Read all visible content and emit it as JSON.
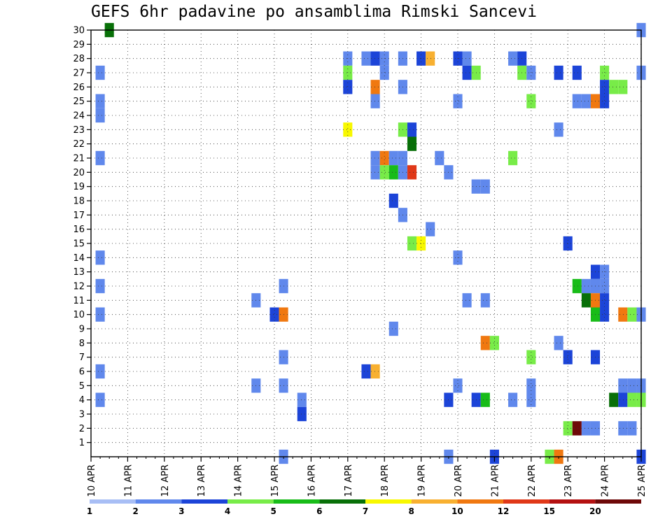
{
  "chart_data": {
    "type": "heatmap",
    "title": "GEFS 6hr padavine po ansamblima Rimski Sancevi",
    "xlabel": "",
    "ylabel": "",
    "x_tick_labels": [
      "10 APR",
      "11 APR",
      "12 APR",
      "13 APR",
      "14 APR",
      "15 APR",
      "16 APR",
      "17 APR",
      "18 APR",
      "19 APR",
      "20 APR",
      "21 APR",
      "22 APR",
      "23 APR",
      "24 APR",
      "25 APR"
    ],
    "x_range_days": [
      0,
      15
    ],
    "y_tick_labels": [
      "1",
      "2",
      "3",
      "4",
      "5",
      "6",
      "7",
      "8",
      "9",
      "10",
      "11",
      "12",
      "13",
      "14",
      "15",
      "16",
      "17",
      "18",
      "19",
      "20",
      "21",
      "22",
      "23",
      "24",
      "25",
      "26",
      "27",
      "28",
      "29",
      "30"
    ],
    "y_range": [
      0,
      30
    ],
    "grid": true,
    "colorbar": {
      "labels": [
        "1",
        "2",
        "3",
        "4",
        "5",
        "6",
        "7",
        "8",
        "10",
        "12",
        "15",
        "20"
      ],
      "colors": [
        "#a8bef5",
        "#6088ec",
        "#1c44d8",
        "#78ec48",
        "#18bc18",
        "#087008",
        "#f8f800",
        "#f8b030",
        "#f07810",
        "#e03818",
        "#b41010",
        "#6e0808"
      ]
    },
    "cells": [
      [
        0.5,
        30,
        5
      ],
      [
        15.0,
        30,
        1
      ],
      [
        7.0,
        28,
        1
      ],
      [
        7.5,
        28,
        1
      ],
      [
        7.75,
        28,
        2
      ],
      [
        8.0,
        28,
        1
      ],
      [
        8.5,
        28,
        1
      ],
      [
        9.0,
        28,
        2
      ],
      [
        9.25,
        28,
        7
      ],
      [
        10.0,
        28,
        2
      ],
      [
        10.25,
        28,
        1
      ],
      [
        11.5,
        28,
        1
      ],
      [
        11.75,
        28,
        2
      ],
      [
        0.25,
        27,
        1
      ],
      [
        7.0,
        27,
        3
      ],
      [
        8.0,
        27,
        1
      ],
      [
        10.25,
        27,
        2
      ],
      [
        10.5,
        27,
        3
      ],
      [
        11.75,
        27,
        3
      ],
      [
        12.0,
        27,
        1
      ],
      [
        12.75,
        27,
        2
      ],
      [
        13.25,
        27,
        2
      ],
      [
        14.0,
        27,
        3
      ],
      [
        15.0,
        27,
        1
      ],
      [
        7.0,
        26,
        2
      ],
      [
        7.75,
        26,
        8
      ],
      [
        8.5,
        26,
        1
      ],
      [
        14.0,
        26,
        2
      ],
      [
        14.25,
        26,
        3
      ],
      [
        14.5,
        26,
        3
      ],
      [
        0.25,
        25,
        1
      ],
      [
        7.75,
        25,
        1
      ],
      [
        10.0,
        25,
        1
      ],
      [
        12.0,
        25,
        3
      ],
      [
        13.25,
        25,
        1
      ],
      [
        13.5,
        25,
        1
      ],
      [
        13.75,
        25,
        8
      ],
      [
        14.0,
        25,
        2
      ],
      [
        0.25,
        24,
        1
      ],
      [
        7.0,
        23,
        6
      ],
      [
        8.5,
        23,
        3
      ],
      [
        8.75,
        23,
        2
      ],
      [
        12.75,
        23,
        1
      ],
      [
        8.75,
        22,
        5
      ],
      [
        0.25,
        21,
        1
      ],
      [
        7.75,
        21,
        1
      ],
      [
        8.0,
        21,
        8
      ],
      [
        8.25,
        21,
        1
      ],
      [
        8.5,
        21,
        1
      ],
      [
        9.5,
        21,
        1
      ],
      [
        11.5,
        21,
        3
      ],
      [
        7.75,
        20,
        1
      ],
      [
        8.0,
        20,
        3
      ],
      [
        8.25,
        20,
        4
      ],
      [
        8.5,
        20,
        1
      ],
      [
        8.75,
        20,
        9
      ],
      [
        9.75,
        20,
        1
      ],
      [
        10.5,
        19,
        1
      ],
      [
        10.75,
        19,
        1
      ],
      [
        8.25,
        18,
        2
      ],
      [
        8.5,
        17,
        1
      ],
      [
        9.25,
        16,
        1
      ],
      [
        8.75,
        15,
        3
      ],
      [
        9.0,
        15,
        6
      ],
      [
        13.0,
        15,
        2
      ],
      [
        0.25,
        14,
        1
      ],
      [
        10.0,
        14,
        1
      ],
      [
        13.75,
        13,
        2
      ],
      [
        14.0,
        13,
        1
      ],
      [
        0.25,
        12,
        1
      ],
      [
        5.25,
        12,
        1
      ],
      [
        13.25,
        12,
        4
      ],
      [
        13.5,
        12,
        1
      ],
      [
        13.75,
        12,
        1
      ],
      [
        14.0,
        12,
        1
      ],
      [
        4.5,
        11,
        1
      ],
      [
        10.25,
        11,
        1
      ],
      [
        10.75,
        11,
        1
      ],
      [
        13.5,
        11,
        5
      ],
      [
        13.75,
        11,
        8
      ],
      [
        14.0,
        11,
        2
      ],
      [
        0.25,
        10,
        1
      ],
      [
        5.0,
        10,
        2
      ],
      [
        5.25,
        10,
        8
      ],
      [
        13.75,
        10,
        4
      ],
      [
        14.0,
        10,
        2
      ],
      [
        14.5,
        10,
        8
      ],
      [
        14.75,
        10,
        3
      ],
      [
        15.0,
        10,
        1
      ],
      [
        8.25,
        9,
        1
      ],
      [
        10.75,
        8,
        8
      ],
      [
        11.0,
        8,
        3
      ],
      [
        12.75,
        8,
        1
      ],
      [
        5.25,
        7,
        1
      ],
      [
        12.0,
        7,
        3
      ],
      [
        13.0,
        7,
        2
      ],
      [
        13.75,
        7,
        2
      ],
      [
        0.25,
        6,
        1
      ],
      [
        7.5,
        6,
        2
      ],
      [
        7.75,
        6,
        7
      ],
      [
        4.5,
        5,
        1
      ],
      [
        5.25,
        5,
        1
      ],
      [
        10.0,
        5,
        1
      ],
      [
        12.0,
        5,
        1
      ],
      [
        14.5,
        5,
        1
      ],
      [
        14.75,
        5,
        1
      ],
      [
        15.0,
        5,
        1
      ],
      [
        0.25,
        4,
        1
      ],
      [
        5.75,
        4,
        1
      ],
      [
        9.75,
        4,
        2
      ],
      [
        10.5,
        4,
        2
      ],
      [
        10.75,
        4,
        4
      ],
      [
        11.5,
        4,
        1
      ],
      [
        12.0,
        4,
        1
      ],
      [
        14.25,
        4,
        5
      ],
      [
        14.5,
        4,
        2
      ],
      [
        14.75,
        4,
        3
      ],
      [
        15.0,
        4,
        3
      ],
      [
        5.75,
        3,
        2
      ],
      [
        13.0,
        2,
        3
      ],
      [
        13.25,
        2,
        11
      ],
      [
        13.5,
        2,
        1
      ],
      [
        13.75,
        2,
        1
      ],
      [
        14.5,
        2,
        1
      ],
      [
        14.75,
        2,
        1
      ],
      [
        5.25,
        0,
        1
      ],
      [
        9.75,
        0,
        1
      ],
      [
        11.0,
        0,
        2
      ],
      [
        12.5,
        0,
        3
      ],
      [
        12.75,
        0,
        8
      ],
      [
        15.0,
        0,
        2
      ]
    ]
  }
}
